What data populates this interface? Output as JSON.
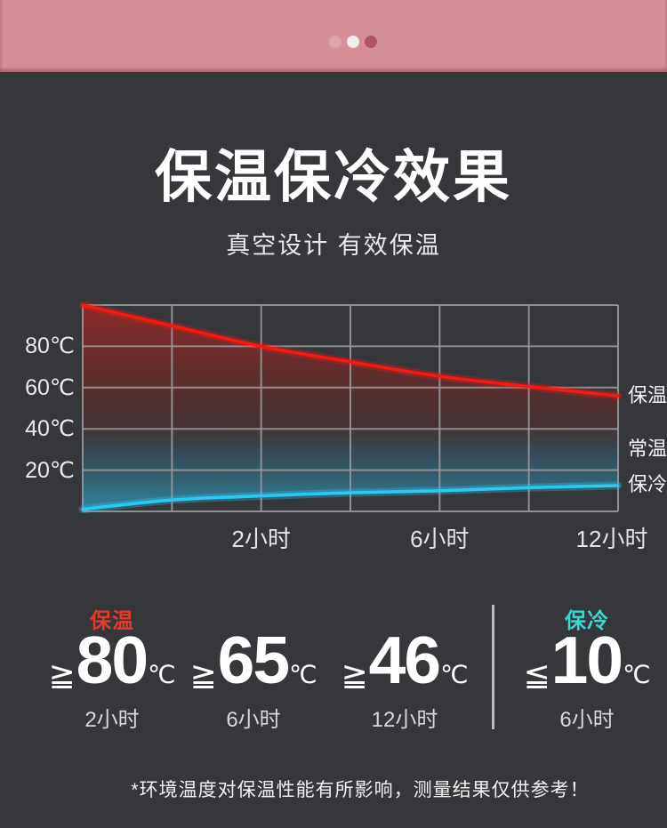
{
  "page": {
    "background": "#35373a"
  },
  "carousel": {
    "bar_color": "#d58f98",
    "dots": [
      {
        "color": "#d9a6ac",
        "active": false
      },
      {
        "color": "#f6ebed",
        "active": false
      },
      {
        "color": "#ac5668",
        "active": true
      }
    ]
  },
  "header": {
    "title": "保温保冷效果",
    "subtitle": "真空设计 有效保温"
  },
  "chart_data": {
    "type": "line",
    "title": "保温保冷效果",
    "grid": true,
    "grid_color": "#97999c",
    "y_axis": {
      "range": [
        0,
        100
      ],
      "gridline_step": 20,
      "tick_values": [
        80,
        60,
        40,
        20
      ],
      "tick_suffix": "℃"
    },
    "x_axis": {
      "columns": 6,
      "ticks": [
        {
          "label": "2小时",
          "col": 2
        },
        {
          "label": "6小时",
          "col": 4
        },
        {
          "label": "12小时",
          "col": 6
        }
      ]
    },
    "series": [
      {
        "key": "hot",
        "name": "保温",
        "color": "#f5190f",
        "values": [
          100,
          90,
          80,
          72.5,
          65.5,
          60.5,
          56
        ]
      },
      {
        "key": "cold",
        "name": "保冷",
        "color": "#28c9f4",
        "values": [
          1,
          5.5,
          7.5,
          9,
          10,
          11.5,
          12.5
        ]
      }
    ],
    "right_labels": [
      {
        "text": "保温",
        "at_temp": 56
      },
      {
        "text": "常温",
        "at_temp": 30
      },
      {
        "text": "保冷",
        "at_temp": 13
      }
    ],
    "legend_position": "right"
  },
  "stats": {
    "hot": {
      "label": "保温",
      "color": "#e23a2b",
      "items": [
        {
          "op": "≧",
          "value": "80",
          "unit": "℃",
          "time": "2小时"
        },
        {
          "op": "≧",
          "value": "65",
          "unit": "℃",
          "time": "6小时"
        },
        {
          "op": "≧",
          "value": "46",
          "unit": "℃",
          "time": "12小时"
        }
      ]
    },
    "cold": {
      "label": "保冷",
      "color": "#38d5d1",
      "items": [
        {
          "op": "≦",
          "value": "10",
          "unit": "℃",
          "time": "6小时"
        }
      ]
    }
  },
  "footnote": "*环境温度对保温性能有所影响，测量结果仅供参考！"
}
